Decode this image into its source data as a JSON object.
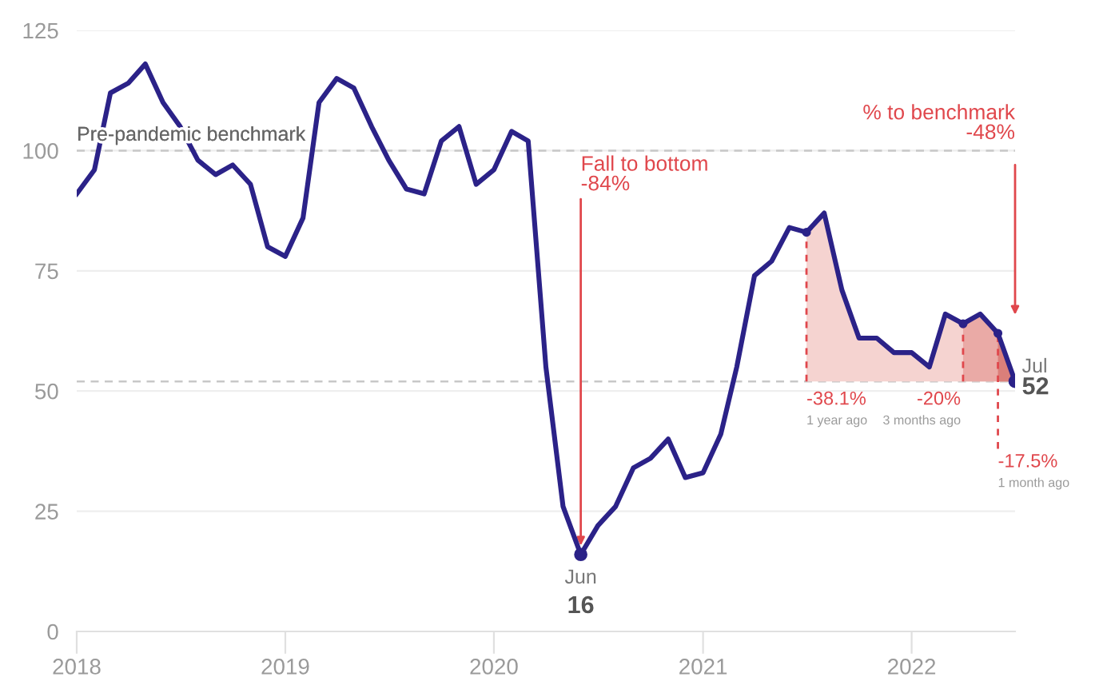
{
  "chart_data": {
    "type": "line",
    "x": [
      "2018-01",
      "2018-02",
      "2018-03",
      "2018-04",
      "2018-05",
      "2018-06",
      "2018-07",
      "2018-08",
      "2018-09",
      "2018-10",
      "2018-11",
      "2018-12",
      "2019-01",
      "2019-02",
      "2019-03",
      "2019-04",
      "2019-05",
      "2019-06",
      "2019-07",
      "2019-08",
      "2019-09",
      "2019-10",
      "2019-11",
      "2019-12",
      "2020-01",
      "2020-02",
      "2020-03",
      "2020-04",
      "2020-05",
      "2020-06",
      "2020-07",
      "2020-08",
      "2020-09",
      "2020-10",
      "2020-11",
      "2020-12",
      "2021-01",
      "2021-02",
      "2021-03",
      "2021-04",
      "2021-05",
      "2021-06",
      "2021-07",
      "2021-08",
      "2021-09",
      "2021-10",
      "2021-11",
      "2021-12",
      "2022-01",
      "2022-02",
      "2022-03",
      "2022-04",
      "2022-05",
      "2022-06",
      "2022-07"
    ],
    "series": [
      {
        "color": "#2b2288",
        "values": [
          91,
          96,
          112,
          114,
          118,
          110,
          105,
          98,
          95,
          97,
          93,
          80,
          78,
          86,
          110,
          115,
          113,
          105,
          98,
          92,
          91,
          102,
          105,
          93,
          96,
          104,
          102,
          55,
          26,
          16,
          22,
          26,
          34,
          36,
          40,
          32,
          33,
          41,
          55,
          74,
          77,
          84,
          83,
          87,
          71,
          61,
          61,
          58,
          58,
          55,
          66,
          64,
          66,
          62,
          52
        ]
      },
      {
        "type": "area",
        "color": "#f5d3d0",
        "x": [
          "2021-07",
          "2021-08",
          "2021-09",
          "2021-10",
          "2021-11",
          "2021-12",
          "2022-01",
          "2022-02",
          "2022-03",
          "2022-04",
          "2022-05",
          "2022-06",
          "2022-07"
        ],
        "values": [
          83,
          87,
          71,
          61,
          61,
          58,
          58,
          55,
          66,
          64,
          66,
          62,
          52
        ]
      },
      {
        "type": "area",
        "color": "#eaaaa6",
        "x": [
          "2022-04",
          "2022-05",
          "2022-06",
          "2022-07"
        ],
        "values": [
          64,
          66,
          62,
          52
        ]
      },
      {
        "type": "area",
        "color": "#db7f7a",
        "x": [
          "2022-06",
          "2022-07"
        ],
        "values": [
          62,
          52
        ]
      }
    ],
    "xlim": [
      "2018-01",
      "2022-07"
    ],
    "xticks": [
      {
        "value": "2018-01",
        "label": "2018"
      },
      {
        "value": "2019-01",
        "label": "2019"
      },
      {
        "value": "2020-01",
        "label": "2020"
      },
      {
        "value": "2021-01",
        "label": "2021"
      },
      {
        "value": "2022-01",
        "label": "2022"
      }
    ],
    "ylim": [
      0,
      125
    ],
    "yticks": [
      0,
      25,
      50,
      75,
      100,
      125
    ],
    "grid": "y",
    "ref_lines": [
      {
        "axis": "y",
        "value": 100,
        "label": "Pre-pandemic benchmark",
        "color": "#c8c8c8",
        "line_style": "dashed"
      },
      {
        "axis": "y",
        "value": 52,
        "color": "#c8c8c8",
        "line_style": "dashed"
      }
    ],
    "annotations": [
      {
        "text": "Fall to bottom\n-84%",
        "x": "2020-06",
        "y": 16
      },
      "% to benchmark\n-48%",
      {
        "text": "Jun\n16",
        "x": "2020-06",
        "y": 16
      },
      {
        "text": "Jul\n52",
        "x": "2022-07",
        "y": 52
      },
      {
        "text": "-38.1%\n1 year ago",
        "x": "2021-07",
        "y": 83
      },
      {
        "text": "-20%\n3 months ago",
        "x": "2022-04",
        "y": 64
      },
      {
        "text": "-17.5%\n1 month ago",
        "x": "2022-06",
        "y": 62
      }
    ]
  }
}
